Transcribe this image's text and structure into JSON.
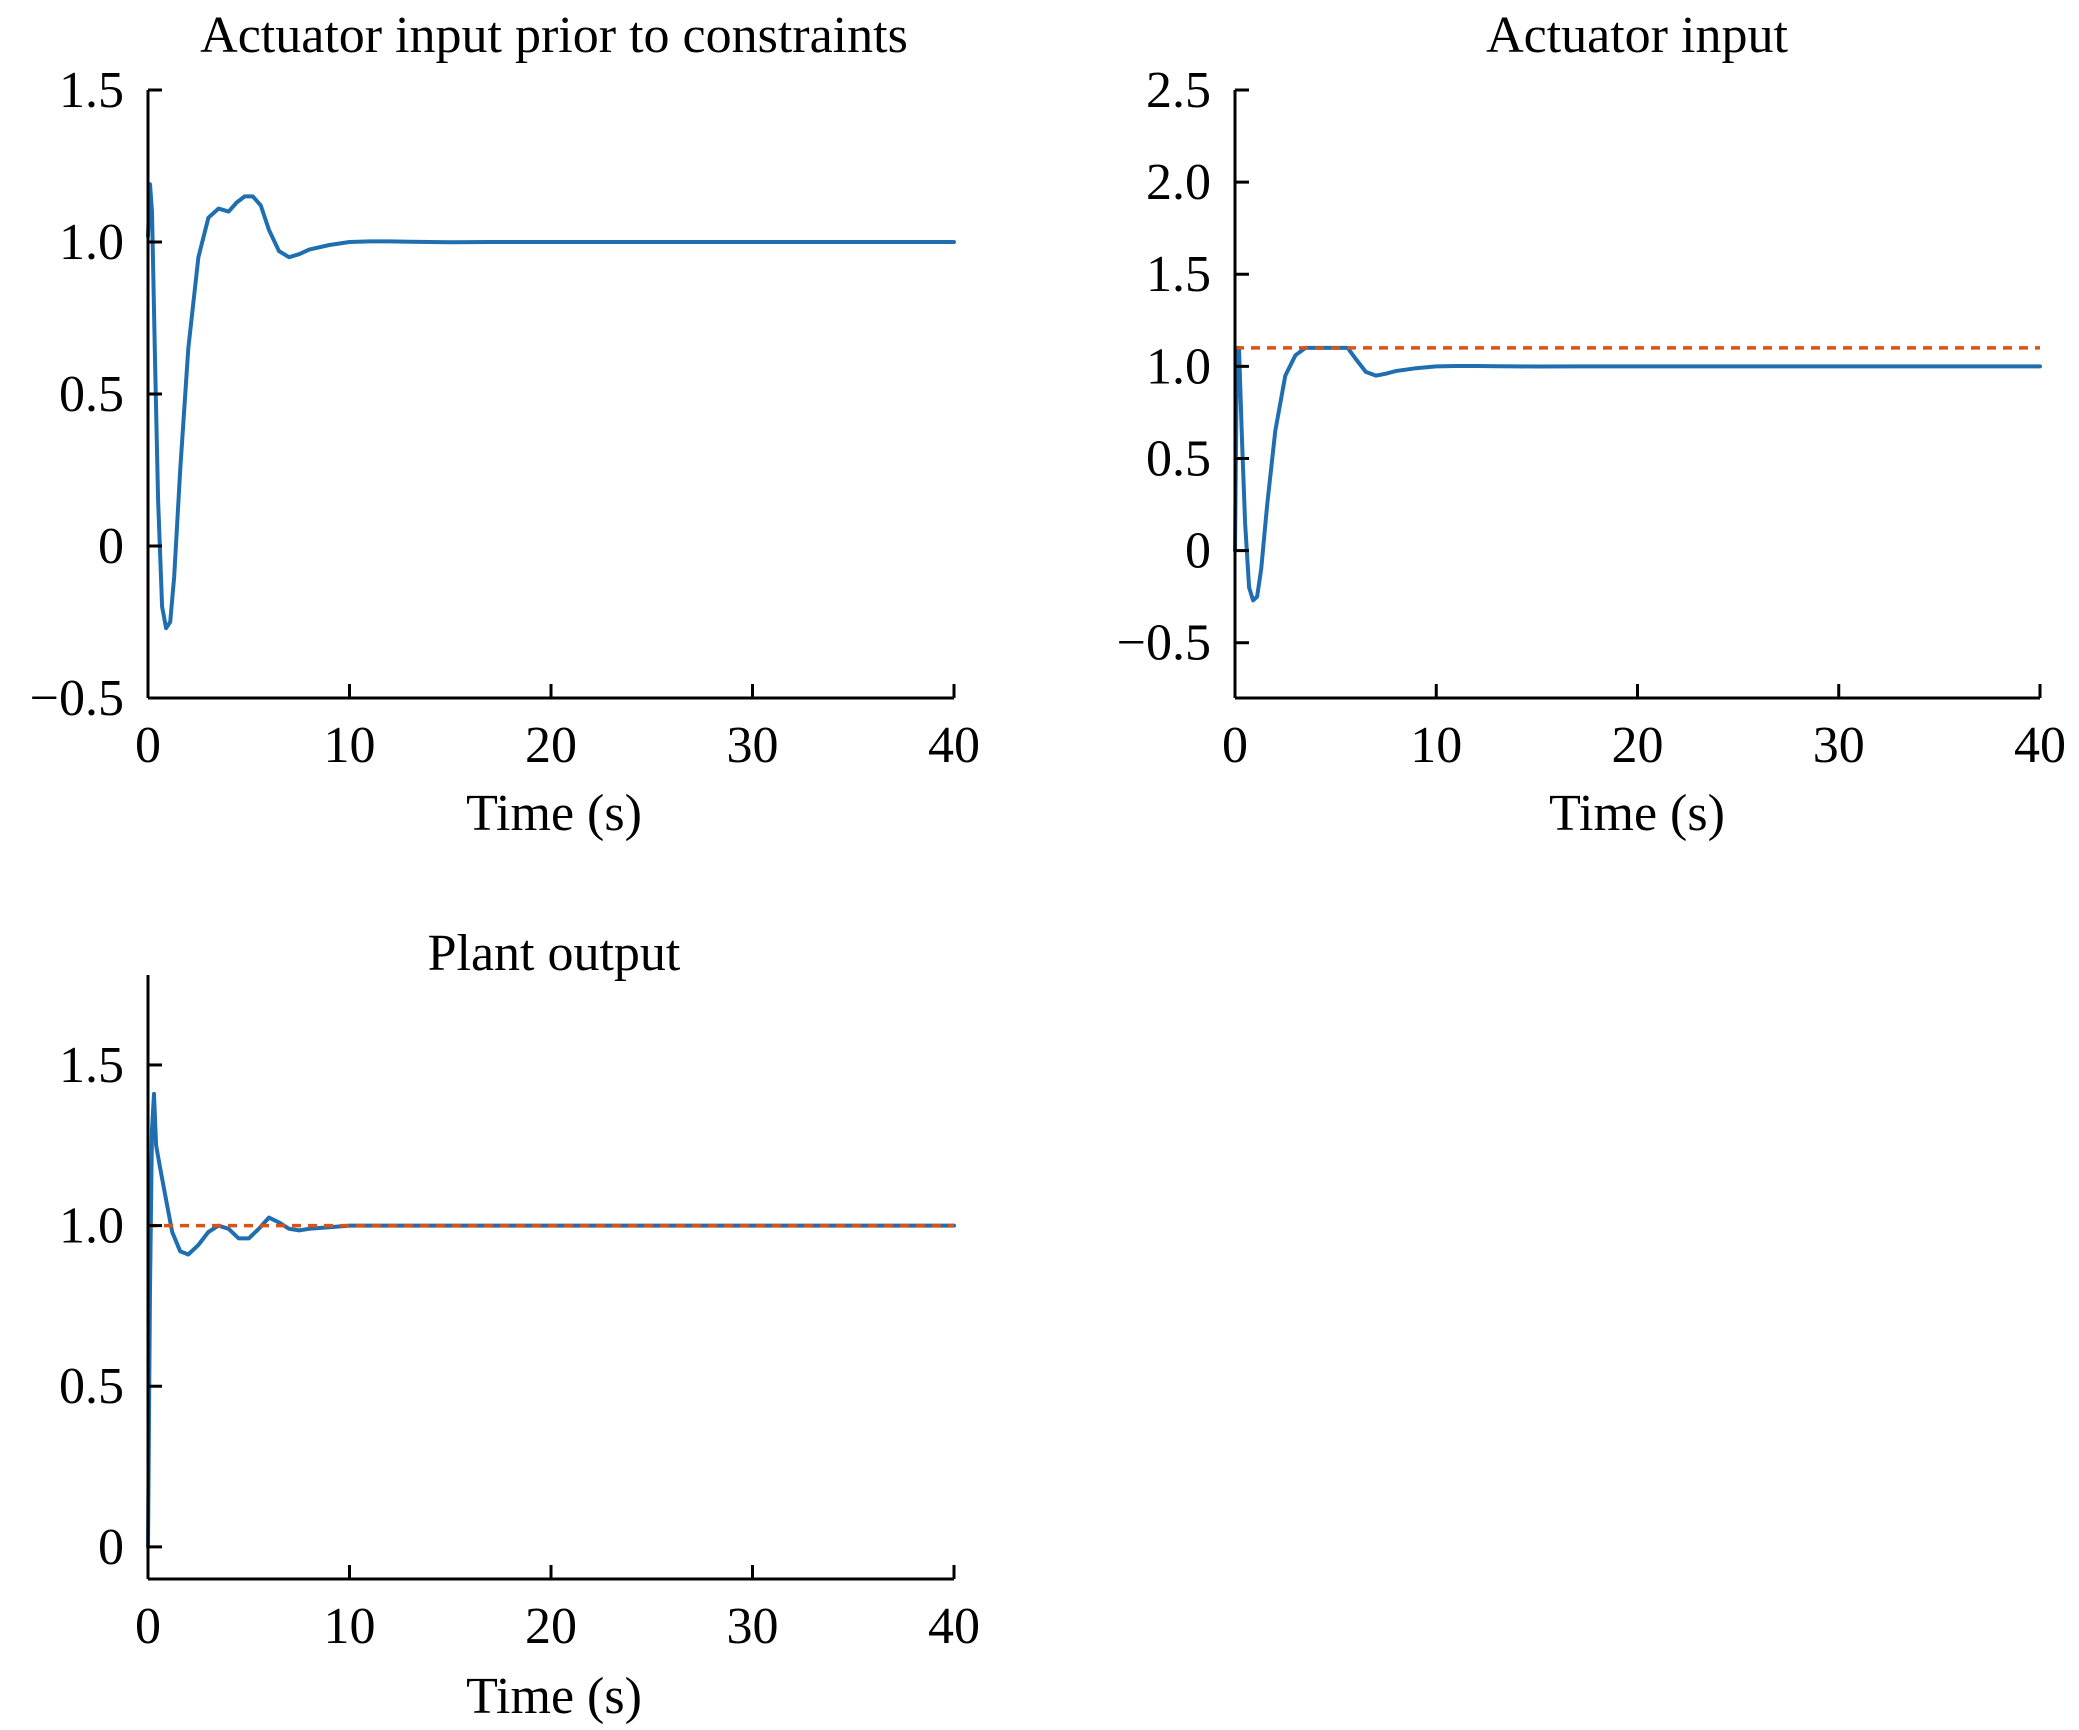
{
  "colors": {
    "response": "#1f6eb0",
    "reference": "#d95319",
    "axis": "#000000"
  },
  "chart_data": [
    {
      "type": "line",
      "title": "Actuator input prior to constraints",
      "xlabel": "Time (s)",
      "ylabel": "",
      "xlim": [
        0,
        40
      ],
      "ylim": [
        -0.5,
        1.5
      ],
      "xticks": [
        0,
        10,
        20,
        30,
        40
      ],
      "xtick_labels": [
        "0",
        "10",
        "20",
        "30",
        "40"
      ],
      "yticks": [
        -0.5,
        0,
        0.5,
        1.0,
        1.5
      ],
      "ytick_labels": [
        "−0.5",
        "0",
        "0.5",
        "1.0",
        "1.5"
      ],
      "grid": false,
      "series": [
        {
          "color": "#1f6eb0",
          "style": "solid",
          "x": [
            0,
            0.1,
            0.2,
            0.35,
            0.5,
            0.7,
            0.9,
            1.1,
            1.3,
            1.6,
            2.0,
            2.5,
            3.0,
            3.5,
            4.0,
            4.4,
            4.8,
            5.2,
            5.6,
            6.0,
            6.5,
            7.0,
            7.5,
            8.0,
            9.0,
            10.0,
            11.0,
            12.0,
            13.0,
            14.0,
            15.0,
            17.0,
            20.0,
            25.0,
            30.0,
            35.0,
            40.0
          ],
          "y": [
            1.02,
            1.19,
            1.1,
            0.6,
            0.15,
            -0.2,
            -0.27,
            -0.25,
            -0.1,
            0.25,
            0.65,
            0.95,
            1.08,
            1.11,
            1.1,
            1.13,
            1.15,
            1.15,
            1.12,
            1.04,
            0.97,
            0.95,
            0.96,
            0.975,
            0.99,
            1.0,
            1.002,
            1.002,
            1.001,
            1.0,
            0.999,
            1.0,
            1.0,
            1.0,
            1.0,
            1.0,
            1.0
          ]
        }
      ]
    },
    {
      "type": "line",
      "title": "Actuator input",
      "xlabel": "Time (s)",
      "ylabel": "",
      "xlim": [
        0,
        40
      ],
      "ylim": [
        -0.8,
        2.5
      ],
      "xticks": [
        0,
        10,
        20,
        30,
        40
      ],
      "xtick_labels": [
        "0",
        "10",
        "20",
        "30",
        "40"
      ],
      "yticks": [
        -0.5,
        0,
        0.5,
        1.0,
        1.5,
        2.0,
        2.5
      ],
      "ytick_labels": [
        "−0.5",
        "0",
        "0.5",
        "1.0",
        "1.5",
        "2.0",
        "2.5"
      ],
      "grid": false,
      "series": [
        {
          "color": "#1f6eb0",
          "style": "solid",
          "x": [
            0,
            0.1,
            0.2,
            0.35,
            0.5,
            0.7,
            0.9,
            1.1,
            1.3,
            1.6,
            2.0,
            2.5,
            3.0,
            3.5,
            4.0,
            4.5,
            5.0,
            5.6,
            6.0,
            6.5,
            7.0,
            7.5,
            8.0,
            9.0,
            10.0,
            11.0,
            12.0,
            13.0,
            14.0,
            15.0,
            17.0,
            20.0,
            25.0,
            30.0,
            35.0,
            40.0
          ],
          "y": [
            0.0,
            1.1,
            1.1,
            0.6,
            0.15,
            -0.2,
            -0.27,
            -0.25,
            -0.1,
            0.25,
            0.65,
            0.95,
            1.06,
            1.1,
            1.1,
            1.1,
            1.1,
            1.1,
            1.04,
            0.97,
            0.95,
            0.96,
            0.975,
            0.99,
            1.0,
            1.002,
            1.002,
            1.001,
            1.0,
            0.999,
            1.0,
            1.0,
            1.0,
            1.0,
            1.0,
            1.0
          ]
        },
        {
          "color": "#d95319",
          "style": "dashed",
          "x": [
            0,
            40
          ],
          "y": [
            1.1,
            1.1
          ]
        }
      ]
    },
    {
      "type": "line",
      "title": "Plant output",
      "xlabel": "Time (s)",
      "ylabel": "",
      "xlim": [
        0,
        40
      ],
      "ylim": [
        -0.1,
        1.78
      ],
      "xticks": [
        0,
        10,
        20,
        30,
        40
      ],
      "xtick_labels": [
        "0",
        "10",
        "20",
        "30",
        "40"
      ],
      "yticks": [
        0,
        0.5,
        1.0,
        1.5
      ],
      "ytick_labels": [
        "0",
        "0.5",
        "1.0",
        "1.5"
      ],
      "grid": false,
      "series": [
        {
          "color": "#1f6eb0",
          "style": "solid",
          "x": [
            0,
            0.1,
            0.2,
            0.3,
            0.4,
            0.6,
            0.9,
            1.2,
            1.6,
            2.0,
            2.5,
            3.0,
            3.5,
            4.0,
            4.5,
            5.0,
            5.5,
            6.0,
            6.5,
            7.0,
            7.5,
            8.0,
            9.0,
            10.0,
            12.0,
            15.0,
            20.0,
            30.0,
            40.0
          ],
          "y": [
            0.0,
            0.8,
            1.3,
            1.41,
            1.25,
            1.18,
            1.08,
            0.98,
            0.92,
            0.91,
            0.94,
            0.98,
            1.0,
            0.99,
            0.96,
            0.96,
            0.99,
            1.025,
            1.01,
            0.99,
            0.985,
            0.99,
            0.995,
            1.0,
            1.0,
            1.0,
            1.0,
            1.0,
            1.0
          ]
        },
        {
          "color": "#d95319",
          "style": "dashed",
          "x": [
            0,
            40
          ],
          "y": [
            1.0,
            1.0
          ]
        }
      ]
    }
  ]
}
